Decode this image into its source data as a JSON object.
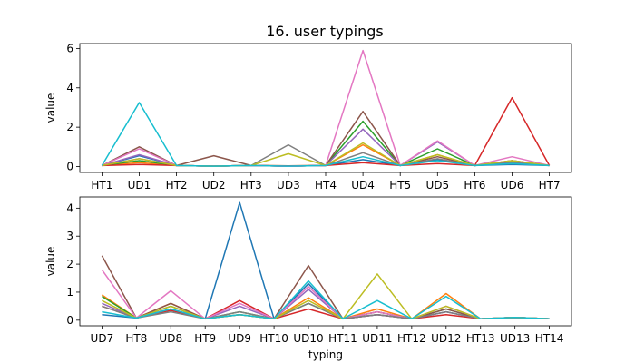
{
  "figure_title": "16. user typings",
  "chart_data": [
    {
      "type": "line",
      "title": "16. user typings",
      "xlabel": "",
      "ylabel": "value",
      "categories": [
        "HT1",
        "UD1",
        "HT2",
        "UD2",
        "HT3",
        "UD3",
        "HT4",
        "UD4",
        "HT5",
        "UD5",
        "HT6",
        "UD6",
        "HT7"
      ],
      "yticks": [
        0,
        2,
        4,
        6
      ],
      "ylim": [
        -0.3,
        6.25
      ],
      "series": [
        {
          "color": "#1f77b4",
          "values": [
            0.05,
            0.55,
            0.05,
            0.02,
            0.05,
            0.02,
            0.05,
            0.35,
            0.05,
            0.35,
            0.05,
            0.1,
            0.05
          ]
        },
        {
          "color": "#ff7f0e",
          "values": [
            0.05,
            0.2,
            0.05,
            0.02,
            0.05,
            0.03,
            0.05,
            1.1,
            0.05,
            0.6,
            0.05,
            0.3,
            0.05
          ]
        },
        {
          "color": "#2ca02c",
          "values": [
            0.05,
            0.3,
            0.05,
            0.02,
            0.05,
            0.02,
            0.05,
            2.3,
            0.05,
            0.9,
            0.05,
            0.2,
            0.05
          ]
        },
        {
          "color": "#d62728",
          "values": [
            0.05,
            0.1,
            0.05,
            0.02,
            0.05,
            0.02,
            0.05,
            0.2,
            0.05,
            0.15,
            0.05,
            3.5,
            0.05
          ]
        },
        {
          "color": "#9467bd",
          "values": [
            0.05,
            0.6,
            0.05,
            0.02,
            0.05,
            0.02,
            0.05,
            1.9,
            0.05,
            1.25,
            0.05,
            0.25,
            0.05
          ]
        },
        {
          "color": "#8c564b",
          "values": [
            0.05,
            1.0,
            0.05,
            0.55,
            0.05,
            0.03,
            0.05,
            2.8,
            0.05,
            0.5,
            0.05,
            0.3,
            0.05
          ]
        },
        {
          "color": "#e377c2",
          "values": [
            0.05,
            0.9,
            0.05,
            0.02,
            0.05,
            0.02,
            0.05,
            5.9,
            0.05,
            1.3,
            0.05,
            0.5,
            0.05
          ]
        },
        {
          "color": "#7f7f7f",
          "values": [
            0.05,
            0.4,
            0.05,
            0.02,
            0.05,
            1.1,
            0.05,
            0.7,
            0.05,
            0.4,
            0.05,
            0.2,
            0.05
          ]
        },
        {
          "color": "#bcbd22",
          "values": [
            0.05,
            0.4,
            0.05,
            0.02,
            0.05,
            0.65,
            0.05,
            1.2,
            0.05,
            0.6,
            0.05,
            0.3,
            0.05
          ]
        },
        {
          "color": "#17becf",
          "values": [
            0.05,
            3.25,
            0.05,
            0.02,
            0.05,
            0.02,
            0.05,
            0.5,
            0.05,
            0.3,
            0.05,
            0.15,
            0.05
          ]
        }
      ]
    },
    {
      "type": "line",
      "title": "",
      "xlabel": "typing",
      "ylabel": "value",
      "categories": [
        "UD7",
        "HT8",
        "UD8",
        "HT9",
        "UD9",
        "HT10",
        "UD10",
        "HT11",
        "UD11",
        "HT12",
        "UD12",
        "HT13",
        "UD13",
        "HT14"
      ],
      "yticks": [
        0,
        1,
        2,
        3,
        4
      ],
      "ylim": [
        -0.2,
        4.4
      ],
      "series": [
        {
          "color": "#1f77b4",
          "values": [
            0.2,
            0.08,
            0.4,
            0.05,
            4.2,
            0.05,
            1.3,
            0.05,
            0.2,
            0.05,
            0.3,
            0.05,
            0.1,
            0.05
          ]
        },
        {
          "color": "#ff7f0e",
          "values": [
            0.9,
            0.08,
            0.6,
            0.05,
            0.2,
            0.05,
            0.8,
            0.05,
            0.4,
            0.05,
            0.95,
            0.05,
            0.1,
            0.05
          ]
        },
        {
          "color": "#2ca02c",
          "values": [
            0.85,
            0.08,
            0.5,
            0.05,
            0.3,
            0.05,
            0.6,
            0.05,
            0.3,
            0.05,
            0.4,
            0.05,
            0.1,
            0.05
          ]
        },
        {
          "color": "#d62728",
          "values": [
            0.5,
            0.08,
            0.35,
            0.05,
            0.7,
            0.05,
            0.4,
            0.05,
            0.2,
            0.05,
            0.2,
            0.05,
            0.1,
            0.05
          ]
        },
        {
          "color": "#9467bd",
          "values": [
            0.6,
            0.08,
            0.4,
            0.05,
            0.5,
            0.05,
            1.1,
            0.05,
            0.2,
            0.05,
            0.3,
            0.05,
            0.1,
            0.05
          ]
        },
        {
          "color": "#8c564b",
          "values": [
            2.3,
            0.08,
            0.6,
            0.05,
            0.2,
            0.05,
            1.95,
            0.05,
            0.3,
            0.05,
            0.4,
            0.05,
            0.1,
            0.05
          ]
        },
        {
          "color": "#e377c2",
          "values": [
            1.8,
            0.08,
            1.05,
            0.05,
            0.6,
            0.05,
            1.2,
            0.05,
            0.3,
            0.05,
            0.5,
            0.05,
            0.1,
            0.05
          ]
        },
        {
          "color": "#7f7f7f",
          "values": [
            0.5,
            0.08,
            0.3,
            0.05,
            0.3,
            0.05,
            0.6,
            0.05,
            0.2,
            0.05,
            0.3,
            0.05,
            0.1,
            0.05
          ]
        },
        {
          "color": "#bcbd22",
          "values": [
            0.7,
            0.08,
            0.5,
            0.05,
            0.2,
            0.05,
            0.7,
            0.05,
            1.65,
            0.05,
            0.5,
            0.05,
            0.1,
            0.05
          ]
        },
        {
          "color": "#17becf",
          "values": [
            0.3,
            0.08,
            0.4,
            0.05,
            0.2,
            0.05,
            1.4,
            0.05,
            0.7,
            0.05,
            0.85,
            0.05,
            0.1,
            0.05
          ]
        }
      ]
    }
  ]
}
